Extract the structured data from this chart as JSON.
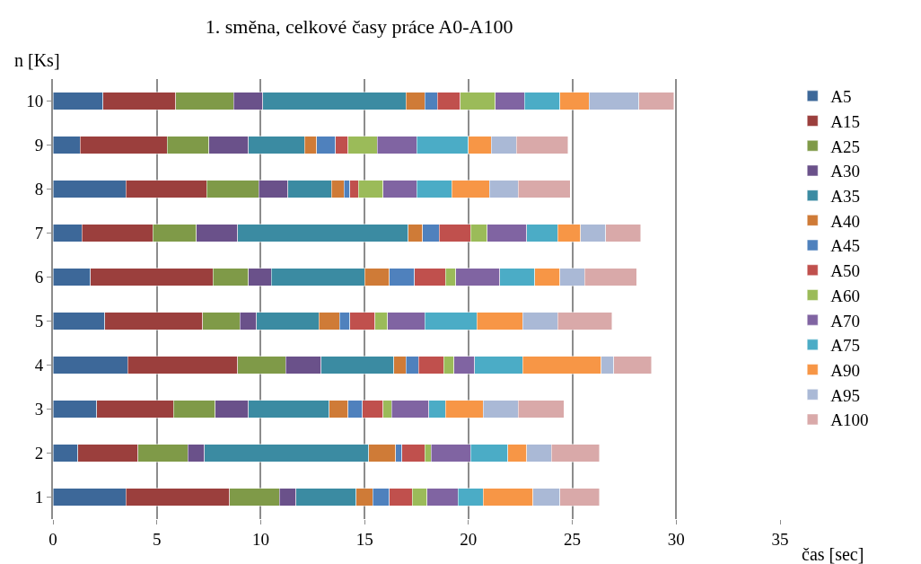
{
  "chart_data": {
    "type": "bar",
    "orientation": "horizontal",
    "stacked": true,
    "title": "1. směna, celkové časy práce A0-A100",
    "xlabel": "čas [sec]",
    "ylabel": "n [Ks]",
    "categories": [
      "10",
      "9",
      "8",
      "7",
      "6",
      "5",
      "4",
      "3",
      "2",
      "1"
    ],
    "series": [
      {
        "name": "A5",
        "color": "#3d6899",
        "values": [
          2.4,
          1.3,
          3.5,
          1.4,
          1.8,
          2.5,
          3.6,
          2.1,
          1.2,
          3.5
        ]
      },
      {
        "name": "A15",
        "color": "#9b3f3d",
        "values": [
          3.5,
          4.2,
          3.9,
          3.4,
          5.9,
          4.7,
          5.3,
          3.7,
          2.9,
          5.0
        ]
      },
      {
        "name": "A25",
        "color": "#7f9a48",
        "values": [
          2.8,
          2.0,
          2.5,
          2.1,
          1.7,
          1.8,
          2.3,
          2.0,
          2.4,
          2.4
        ]
      },
      {
        "name": "A30",
        "color": "#6a518a",
        "values": [
          1.4,
          1.9,
          1.4,
          2.0,
          1.1,
          0.8,
          1.7,
          1.6,
          0.8,
          0.8
        ]
      },
      {
        "name": "A35",
        "color": "#3b8ba2",
        "values": [
          6.9,
          2.7,
          2.1,
          8.2,
          4.5,
          3.0,
          3.5,
          3.9,
          7.9,
          2.9
        ]
      },
      {
        "name": "A40",
        "color": "#cf7b37",
        "values": [
          0.9,
          0.6,
          0.6,
          0.7,
          1.2,
          1.0,
          0.6,
          0.9,
          1.3,
          0.8
        ]
      },
      {
        "name": "A45",
        "color": "#4f81bd",
        "values": [
          0.6,
          0.9,
          0.3,
          0.8,
          1.2,
          0.5,
          0.6,
          0.7,
          0.3,
          0.8
        ]
      },
      {
        "name": "A50",
        "color": "#c0504d",
        "values": [
          1.1,
          0.6,
          0.4,
          1.5,
          1.5,
          1.2,
          1.2,
          1.0,
          1.1,
          1.1
        ]
      },
      {
        "name": "A60",
        "color": "#9bbb59",
        "values": [
          1.7,
          1.4,
          1.2,
          0.8,
          0.5,
          0.6,
          0.5,
          0.4,
          0.3,
          0.7
        ]
      },
      {
        "name": "A70",
        "color": "#8064a2",
        "values": [
          1.4,
          1.9,
          1.6,
          1.9,
          2.1,
          1.8,
          1.0,
          1.8,
          1.9,
          1.5
        ]
      },
      {
        "name": "A75",
        "color": "#4bacc6",
        "values": [
          1.7,
          2.5,
          1.7,
          1.5,
          1.7,
          2.5,
          2.3,
          0.8,
          1.8,
          1.2
        ]
      },
      {
        "name": "A90",
        "color": "#f79646",
        "values": [
          1.4,
          1.1,
          1.8,
          1.1,
          1.2,
          2.2,
          3.8,
          1.8,
          0.9,
          2.4
        ]
      },
      {
        "name": "A95",
        "color": "#aab9d6",
        "values": [
          2.4,
          1.2,
          1.4,
          1.2,
          1.2,
          1.7,
          0.6,
          1.7,
          1.2,
          1.3
        ]
      },
      {
        "name": "A100",
        "color": "#d9a9a9",
        "values": [
          1.7,
          2.5,
          2.5,
          1.7,
          2.5,
          2.6,
          1.8,
          2.2,
          2.3,
          1.9
        ]
      }
    ],
    "xlim": [
      0,
      35
    ],
    "xticks": [
      0,
      5,
      10,
      15,
      20,
      25,
      30,
      35
    ],
    "grid": "x",
    "legend": "right"
  }
}
